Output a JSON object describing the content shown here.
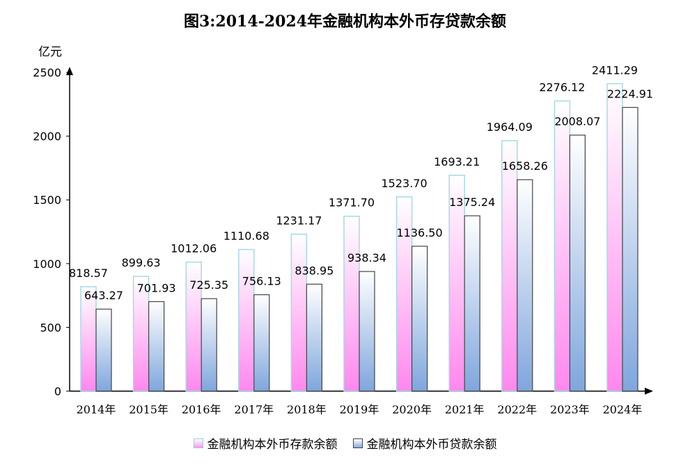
{
  "chart_data": {
    "type": "bar",
    "title": "图3:2014-2024年金融机构本外币存贷款余额",
    "ylabel": "亿元",
    "xlabel": "",
    "ylim": [
      0,
      2500
    ],
    "yticks": [
      0,
      500,
      1000,
      1500,
      2000,
      2500
    ],
    "categories": [
      "2014年",
      "2015年",
      "2016年",
      "2017年",
      "2018年",
      "2019年",
      "2020年",
      "2021年",
      "2022年",
      "2023年",
      "2024年"
    ],
    "series": [
      {
        "name": "金融机构本外币存款余额",
        "values": [
          818.57,
          899.63,
          1012.06,
          1110.68,
          1231.17,
          1371.7,
          1523.7,
          1693.21,
          1964.09,
          2276.12,
          2411.29
        ],
        "labels": [
          "818.57",
          "899.63",
          "1012.06",
          "1110.68",
          "1231.17",
          "1371.70",
          "1523.70",
          "1693.21",
          "1964.09",
          "2276.12",
          "2411.29"
        ]
      },
      {
        "name": "金融机构本外币贷款余额",
        "values": [
          643.27,
          701.93,
          725.35,
          756.13,
          838.95,
          938.34,
          1136.5,
          1375.24,
          1658.26,
          2008.07,
          2224.91
        ],
        "labels": [
          "643.27",
          "701.93",
          "725.35",
          "756.13",
          "838.95",
          "938.34",
          "1136.50",
          "1375.24",
          "1658.26",
          "2008.07",
          "2224.91"
        ]
      }
    ],
    "grid": false,
    "legend": "bottom"
  }
}
